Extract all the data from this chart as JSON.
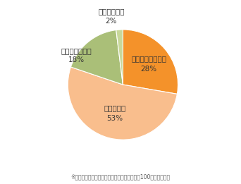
{
  "labels": [
    "かなり強く感じる",
    "強く感じる",
    "あまり感じない",
    "ほぼ感じない"
  ],
  "values": [
    28,
    53,
    18,
    2
  ],
  "colors": [
    "#F4922A",
    "#F9BE8D",
    "#AABF78",
    "#C8D89A"
  ],
  "footnote": "※小数点以下で四捨五入しているため、合計が100にならない。",
  "footnote_fontsize": 5.5,
  "startangle": 90,
  "background_color": "#ffffff",
  "text_color": "#333333",
  "label_fontsize": 7.5,
  "pct_fontsize": 7.5
}
